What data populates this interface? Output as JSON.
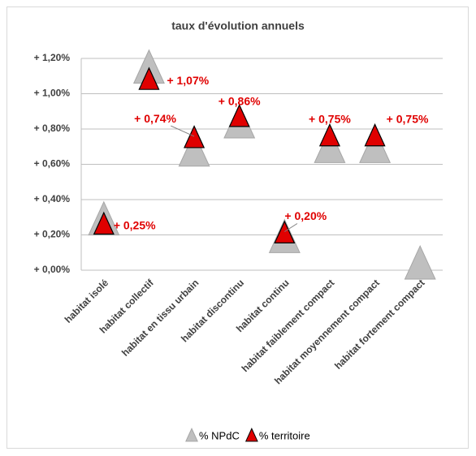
{
  "chart_data": {
    "type": "scatter",
    "title": "taux d'évolution annuels",
    "categories": [
      "habitat isolé",
      "habitat collectif",
      "habitat en tissu urbain",
      "habitat discontinu",
      "habitat continu",
      "habitat faiblement compact",
      "habitat moyennement compact",
      "habitat fortement compact"
    ],
    "series": [
      {
        "name": "% NPdC",
        "color": "#bfbfbf",
        "values": [
          0.27,
          1.13,
          0.66,
          0.82,
          0.17,
          0.68,
          0.68,
          0.02
        ]
      },
      {
        "name": "% territoire",
        "color": "#e00000",
        "values": [
          0.25,
          1.07,
          0.74,
          0.86,
          0.2,
          0.75,
          0.75,
          null
        ],
        "value_labels": [
          "+ 0,25%",
          "+ 1,07%",
          "+ 0,74%",
          "+ 0,86%",
          "+ 0,20%",
          "+ 0,75%",
          "+ 0,75%",
          null
        ]
      }
    ],
    "ylim": [
      0,
      1.2
    ],
    "yticks": [
      {
        "value": 0,
        "label": "+ 0,00%"
      },
      {
        "value": 0.2,
        "label": "+ 0,20%"
      },
      {
        "value": 0.4,
        "label": "+ 0,40%"
      },
      {
        "value": 0.6,
        "label": "+ 0,60%"
      },
      {
        "value": 0.8,
        "label": "+ 0,80%"
      },
      {
        "value": 1.0,
        "label": "+ 1,00%"
      },
      {
        "value": 1.2,
        "label": "+ 1,20%"
      }
    ],
    "grid": true,
    "legend": "bottom"
  }
}
